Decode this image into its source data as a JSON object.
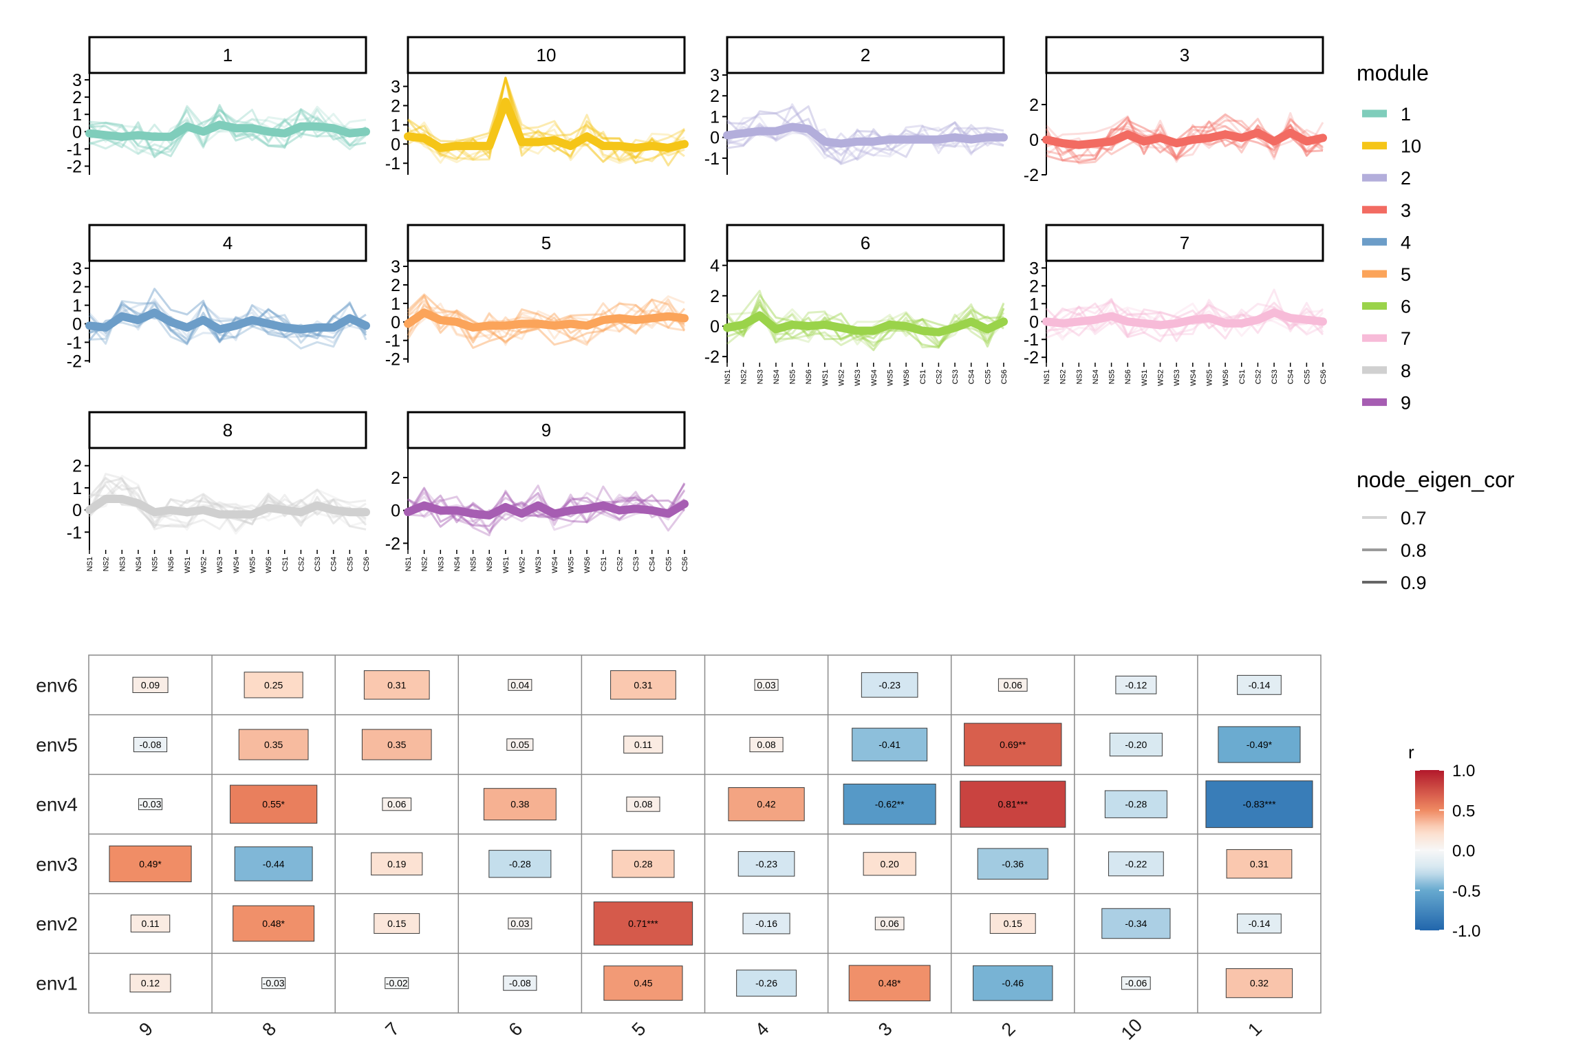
{
  "chart_data": [
    {
      "type": "line",
      "title": "",
      "x": [
        "NS1",
        "NS2",
        "NS3",
        "NS4",
        "NS5",
        "NS6",
        "WS1",
        "WS2",
        "WS3",
        "WS4",
        "WS5",
        "WS6",
        "CS1",
        "CS2",
        "CS3",
        "CS4",
        "CS5",
        "CS6"
      ],
      "legend": {
        "module_title": "module",
        "module_entries": [
          "1",
          "10",
          "2",
          "3",
          "4",
          "5",
          "6",
          "7",
          "8",
          "9"
        ],
        "cor_title": "node_eigen_cor",
        "cor_entries": [
          "0.7",
          "0.8",
          "0.9"
        ]
      },
      "panels": [
        {
          "label": "1",
          "color": "#7FCDBB",
          "ylim": [
            -2.5,
            3.4
          ],
          "yticks": [
            -2,
            -1,
            0,
            1,
            2,
            3
          ],
          "eigengene": [
            -0.1,
            -0.2,
            -0.3,
            -0.2,
            -0.3,
            -0.3,
            0.3,
            0.0,
            0.4,
            0.2,
            0.2,
            0.0,
            -0.1,
            0.3,
            0.3,
            0.2,
            -0.1,
            0.0
          ]
        },
        {
          "label": "10",
          "color": "#F5C518",
          "ylim": [
            -1.6,
            3.7
          ],
          "yticks": [
            -1,
            0,
            1,
            2,
            3
          ],
          "eigengene": [
            0.4,
            0.3,
            -0.2,
            -0.1,
            -0.1,
            -0.1,
            2.2,
            0.1,
            0.1,
            0.2,
            -0.1,
            0.4,
            -0.1,
            -0.1,
            -0.2,
            -0.1,
            -0.2,
            0.0
          ]
        },
        {
          "label": "2",
          "color": "#B3AEDB",
          "ylim": [
            -1.8,
            3.1
          ],
          "yticks": [
            -1,
            0,
            1,
            2,
            3
          ],
          "eigengene": [
            0.1,
            0.2,
            0.3,
            0.3,
            0.5,
            0.4,
            -0.2,
            -0.3,
            -0.2,
            -0.2,
            -0.1,
            -0.1,
            -0.1,
            -0.1,
            0.0,
            -0.1,
            0.0,
            0.0
          ]
        },
        {
          "label": "3",
          "color": "#F26B62",
          "ylim": [
            -2.0,
            3.8
          ],
          "yticks": [
            -2,
            0,
            2
          ],
          "eigengene": [
            0.0,
            -0.2,
            -0.3,
            -0.2,
            -0.1,
            0.3,
            -0.1,
            0.1,
            -0.2,
            0.0,
            0.1,
            0.3,
            0.1,
            0.4,
            -0.1,
            0.4,
            -0.1,
            0.1
          ]
        },
        {
          "label": "4",
          "color": "#6C9DC8",
          "ylim": [
            -2.1,
            3.4
          ],
          "yticks": [
            -2,
            -1,
            0,
            1,
            2,
            3
          ],
          "eigengene": [
            -0.1,
            -0.2,
            0.4,
            0.2,
            0.6,
            0.1,
            -0.2,
            0.2,
            -0.3,
            -0.1,
            0.2,
            0.0,
            -0.2,
            -0.3,
            -0.2,
            -0.2,
            0.3,
            -0.1
          ]
        },
        {
          "label": "5",
          "color": "#FBA45A",
          "ylim": [
            -2.2,
            3.3
          ],
          "yticks": [
            -2,
            -1,
            0,
            1,
            2,
            3
          ],
          "eigengene": [
            -0.1,
            0.5,
            0.1,
            0.0,
            -0.3,
            -0.2,
            -0.2,
            -0.1,
            -0.1,
            -0.2,
            -0.1,
            -0.2,
            0.1,
            0.2,
            0.1,
            0.2,
            0.3,
            0.2
          ]
        },
        {
          "label": "6",
          "color": "#9AD34A",
          "ylim": [
            -2.4,
            4.3
          ],
          "yticks": [
            -2,
            0,
            2,
            4
          ],
          "eigengene": [
            -0.1,
            0.1,
            0.7,
            -0.2,
            0.1,
            0.0,
            0.1,
            -0.1,
            -0.3,
            -0.3,
            0.1,
            0.0,
            -0.3,
            -0.4,
            -0.1,
            0.3,
            -0.2,
            0.3
          ]
        },
        {
          "label": "7",
          "color": "#F7BBD8",
          "ylim": [
            -2.3,
            3.4
          ],
          "yticks": [
            -2,
            -1,
            0,
            1,
            2,
            3
          ],
          "eigengene": [
            0.0,
            -0.1,
            0.0,
            0.1,
            0.3,
            0.0,
            -0.1,
            -0.2,
            -0.1,
            0.1,
            0.2,
            -0.1,
            -0.1,
            0.1,
            0.5,
            0.2,
            0.1,
            0.0
          ]
        },
        {
          "label": "8",
          "color": "#D0D0D0",
          "ylim": [
            -1.8,
            2.8
          ],
          "yticks": [
            -1,
            0,
            1,
            2
          ],
          "eigengene": [
            0.0,
            0.5,
            0.5,
            0.3,
            -0.1,
            0.0,
            -0.1,
            0.0,
            -0.2,
            -0.2,
            -0.2,
            0.1,
            0.0,
            -0.1,
            0.2,
            0.0,
            -0.1,
            -0.1
          ]
        },
        {
          "label": "9",
          "color": "#A65DB2",
          "ylim": [
            -2.4,
            3.8
          ],
          "yticks": [
            -2,
            0,
            2
          ],
          "eigengene": [
            -0.1,
            0.3,
            0.0,
            0.0,
            -0.2,
            -0.3,
            0.2,
            -0.2,
            0.3,
            -0.2,
            0.0,
            0.1,
            0.3,
            0.0,
            0.1,
            0.0,
            -0.2,
            0.4
          ]
        }
      ]
    },
    {
      "type": "heatmap",
      "title": "",
      "xlabel": "",
      "ylabel": "",
      "columns": [
        "9",
        "8",
        "7",
        "6",
        "5",
        "4",
        "3",
        "2",
        "10",
        "1"
      ],
      "rows": [
        "env6",
        "env5",
        "env4",
        "env3",
        "env2",
        "env1"
      ],
      "values": [
        [
          0.09,
          0.25,
          0.31,
          0.04,
          0.31,
          0.03,
          -0.23,
          0.06,
          -0.12,
          -0.14
        ],
        [
          -0.08,
          0.35,
          0.35,
          0.05,
          0.11,
          0.08,
          -0.41,
          0.69,
          -0.2,
          -0.49
        ],
        [
          -0.03,
          0.55,
          0.06,
          0.38,
          0.08,
          0.42,
          -0.62,
          0.81,
          -0.28,
          -0.83
        ],
        [
          0.49,
          -0.44,
          0.19,
          -0.28,
          0.28,
          -0.23,
          0.2,
          -0.36,
          -0.22,
          0.31
        ],
        [
          0.11,
          0.48,
          0.15,
          0.03,
          0.71,
          -0.16,
          0.06,
          0.15,
          -0.34,
          -0.14
        ],
        [
          0.12,
          -0.03,
          -0.02,
          -0.08,
          0.45,
          -0.26,
          0.48,
          -0.46,
          -0.06,
          0.32
        ]
      ],
      "labels": [
        [
          "0.09",
          "0.25",
          "0.31",
          "0.04",
          "0.31",
          "0.03",
          "-0.23",
          "0.06",
          "-0.12",
          "-0.14"
        ],
        [
          "-0.08",
          "0.35",
          "0.35",
          "0.05",
          "0.11",
          "0.08",
          "-0.41",
          "0.69**",
          "-0.20",
          "-0.49*"
        ],
        [
          "-0.03",
          "0.55*",
          "0.06",
          "0.38",
          "0.08",
          "0.42",
          "-0.62**",
          "0.81***",
          "-0.28",
          "-0.83***"
        ],
        [
          "0.49*",
          "-0.44",
          "0.19",
          "-0.28",
          "0.28",
          "-0.23",
          "0.20",
          "-0.36",
          "-0.22",
          "0.31"
        ],
        [
          "0.11",
          "0.48*",
          "0.15",
          "0.03",
          "0.71***",
          "-0.16",
          "0.06",
          "0.15",
          "-0.34",
          "-0.14"
        ],
        [
          "0.12",
          "-0.03",
          "-0.02",
          "-0.08",
          "0.45",
          "-0.26",
          "0.48*",
          "-0.46",
          "-0.06",
          "0.32"
        ]
      ],
      "colorbar": {
        "title": "r",
        "range": [
          -1,
          1
        ],
        "ticks": [
          "1.0",
          "0.5",
          "0.0",
          "-0.5",
          "-1.0"
        ],
        "tick_values": [
          1.0,
          0.5,
          0.0,
          -0.5,
          -1.0
        ]
      }
    }
  ]
}
